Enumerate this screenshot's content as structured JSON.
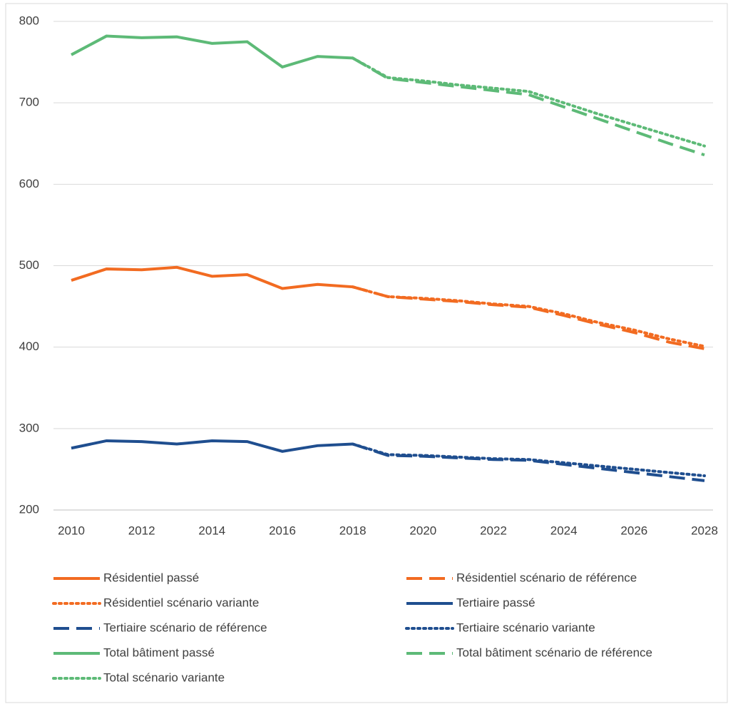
{
  "chart_data": {
    "type": "line",
    "x": [
      2010,
      2011,
      2012,
      2013,
      2014,
      2015,
      2016,
      2017,
      2018,
      2019,
      2020,
      2021,
      2022,
      2023,
      2024,
      2025,
      2026,
      2027,
      2028
    ],
    "xlim": [
      2010,
      2028
    ],
    "xticks": [
      2010,
      2012,
      2014,
      2016,
      2018,
      2020,
      2022,
      2024,
      2026,
      2028
    ],
    "ylim": [
      200,
      800
    ],
    "yticks": [
      200,
      300,
      400,
      500,
      600,
      700,
      800
    ],
    "grid": true,
    "legend": "bottom",
    "series": [
      {
        "name": "Résidentiel passé",
        "color": "#f26b21",
        "dash": "solid",
        "values": [
          482,
          496,
          495,
          498,
          487,
          489,
          472,
          477,
          474,
          null,
          null,
          null,
          null,
          null,
          null,
          null,
          null,
          null,
          null
        ]
      },
      {
        "name": "Résidentiel scénario de référence",
        "color": "#f26b21",
        "dash": "dashed",
        "values": [
          null,
          null,
          null,
          null,
          null,
          null,
          null,
          null,
          474,
          462,
          459,
          456,
          452,
          449,
          439,
          428,
          418,
          406,
          398
        ]
      },
      {
        "name": "Résidentiel scénario variante",
        "color": "#f26b21",
        "dash": "dotted",
        "values": [
          null,
          null,
          null,
          null,
          null,
          null,
          null,
          null,
          474,
          462,
          460,
          457,
          453,
          450,
          441,
          430,
          421,
          410,
          401
        ]
      },
      {
        "name": "Tertiaire passé",
        "color": "#1f4e8f",
        "dash": "solid",
        "values": [
          276,
          285,
          284,
          281,
          285,
          284,
          272,
          279,
          281,
          null,
          null,
          null,
          null,
          null,
          null,
          null,
          null,
          null,
          null
        ]
      },
      {
        "name": "Tertiaire scénario de référence",
        "color": "#1f4e8f",
        "dash": "dashed",
        "values": [
          null,
          null,
          null,
          null,
          null,
          null,
          null,
          null,
          281,
          267,
          266,
          264,
          262,
          261,
          256,
          251,
          246,
          241,
          236
        ]
      },
      {
        "name": "Tertiaire scénario variante",
        "color": "#1f4e8f",
        "dash": "dotted",
        "values": [
          null,
          null,
          null,
          null,
          null,
          null,
          null,
          null,
          281,
          268,
          267,
          265,
          263,
          262,
          258,
          254,
          250,
          246,
          242
        ]
      },
      {
        "name": "Total bâtiment passé",
        "color": "#5dba77",
        "dash": "solid",
        "values": [
          759,
          782,
          780,
          781,
          773,
          775,
          744,
          757,
          755,
          null,
          null,
          null,
          null,
          null,
          null,
          null,
          null,
          null,
          null
        ]
      },
      {
        "name": "Total bâtiment scénario de référence",
        "color": "#5dba77",
        "dash": "dashed",
        "values": [
          null,
          null,
          null,
          null,
          null,
          null,
          null,
          null,
          755,
          730,
          725,
          720,
          715,
          710,
          695,
          680,
          665,
          650,
          636
        ]
      },
      {
        "name": "Total scénario variante",
        "color": "#5dba77",
        "dash": "dotted",
        "values": [
          null,
          null,
          null,
          null,
          null,
          null,
          null,
          null,
          755,
          731,
          727,
          722,
          718,
          714,
          700,
          686,
          673,
          660,
          647
        ]
      }
    ]
  }
}
